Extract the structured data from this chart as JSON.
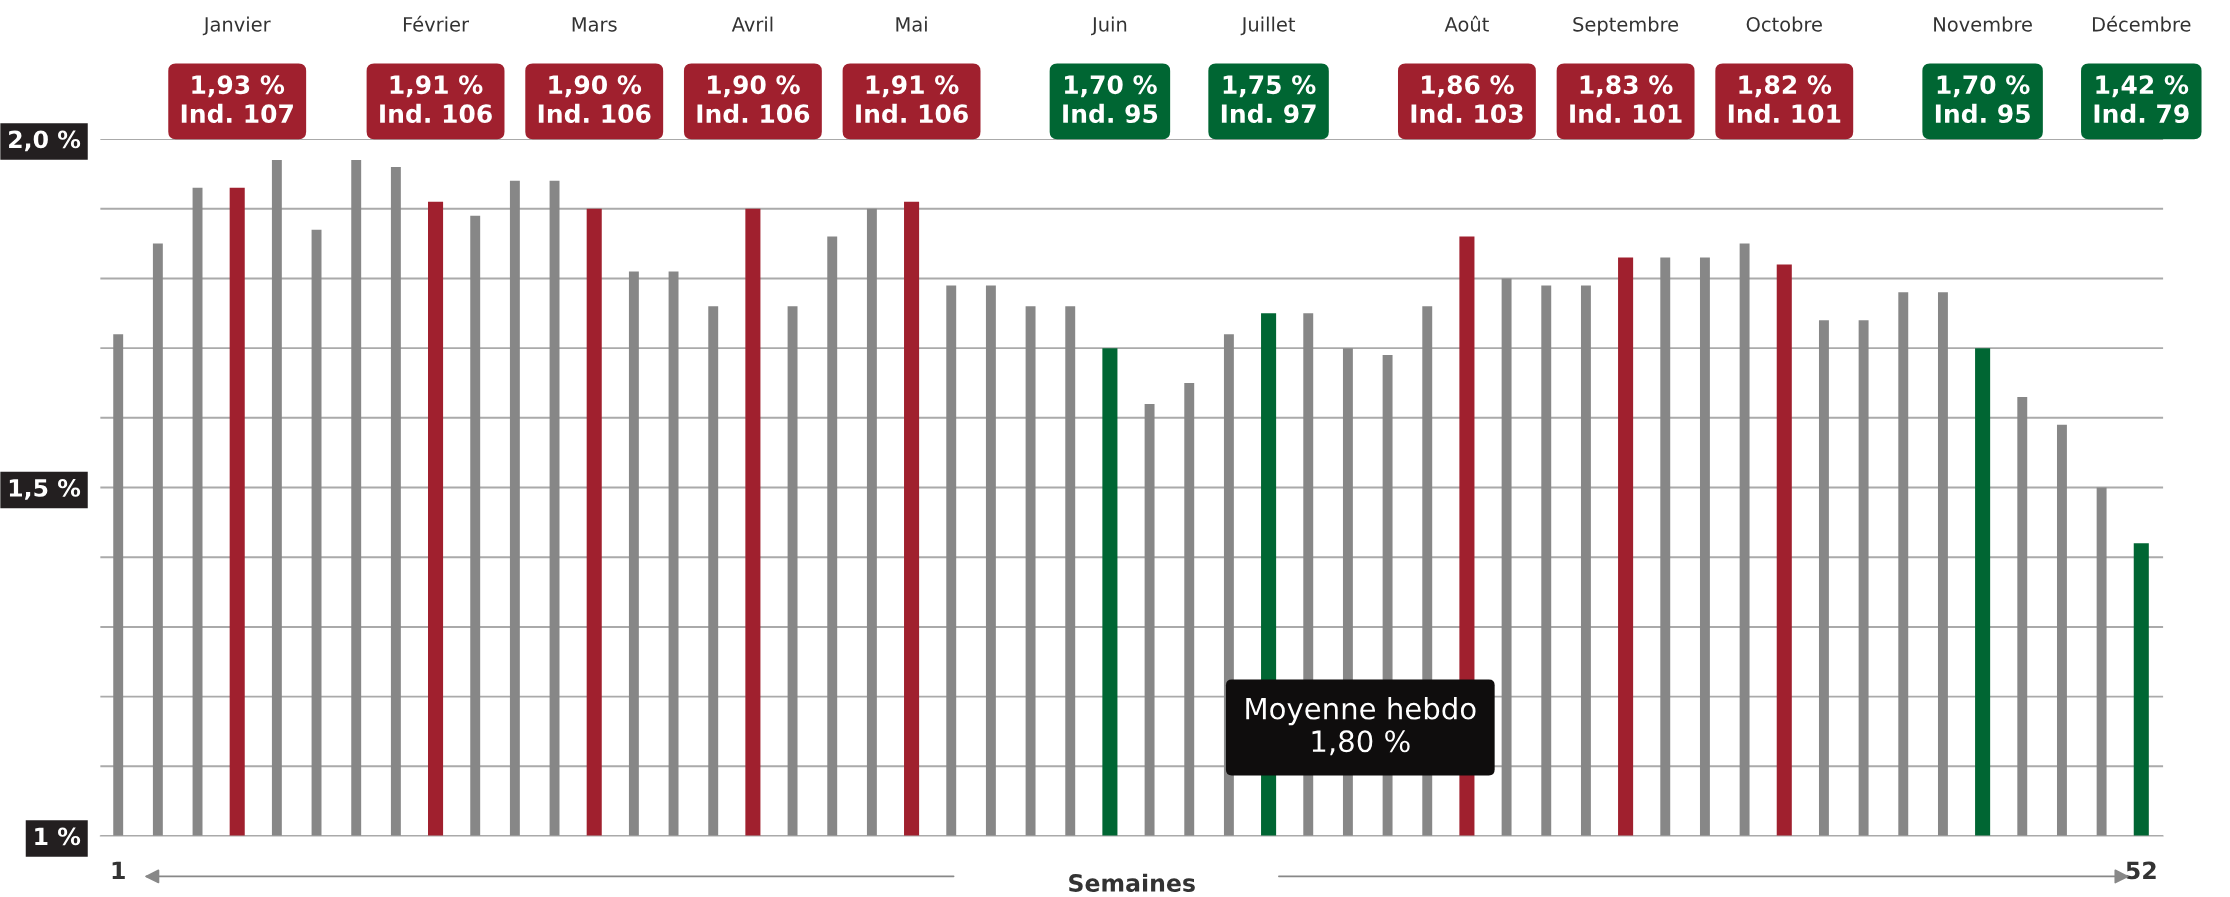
{
  "chart_data": {
    "type": "bar",
    "xlabel": "Semaines",
    "categories": [
      "1",
      null,
      null,
      null,
      null,
      null,
      null,
      null,
      null,
      null,
      null,
      null,
      null,
      null,
      null,
      null,
      null,
      null,
      null,
      null,
      null,
      null,
      null,
      null,
      null,
      null,
      null,
      null,
      null,
      null,
      null,
      null,
      null,
      null,
      null,
      null,
      null,
      null,
      null,
      null,
      null,
      null,
      null,
      null,
      null,
      null,
      null,
      null,
      null,
      null,
      null,
      "52"
    ],
    "values": [
      1.72,
      1.85,
      1.93,
      1.93,
      1.97,
      1.87,
      1.97,
      1.96,
      1.91,
      1.89,
      1.94,
      1.94,
      1.9,
      1.81,
      1.81,
      1.76,
      1.9,
      1.76,
      1.86,
      1.9,
      1.91,
      1.79,
      1.79,
      1.76,
      1.76,
      1.7,
      1.62,
      1.65,
      1.72,
      1.75,
      1.75,
      1.7,
      1.69,
      1.76,
      1.86,
      1.8,
      1.79,
      1.79,
      1.83,
      1.83,
      1.83,
      1.85,
      1.82,
      1.74,
      1.74,
      1.78,
      1.78,
      1.7,
      1.63,
      1.59,
      1.5,
      1.42
    ],
    "colors": [
      "#878787",
      "#878787",
      "#878787",
      "#a0202e",
      "#878787",
      "#878787",
      "#878787",
      "#878787",
      "#a0202e",
      "#878787",
      "#878787",
      "#878787",
      "#a0202e",
      "#878787",
      "#878787",
      "#878787",
      "#a0202e",
      "#878787",
      "#878787",
      "#878787",
      "#a0202e",
      "#878787",
      "#878787",
      "#878787",
      "#878787",
      "#006633",
      "#878787",
      "#878787",
      "#878787",
      "#006633",
      "#878787",
      "#878787",
      "#878787",
      "#878787",
      "#a0202e",
      "#878787",
      "#878787",
      "#878787",
      "#a0202e",
      "#878787",
      "#878787",
      "#878787",
      "#a0202e",
      "#878787",
      "#878787",
      "#878787",
      "#878787",
      "#006633",
      "#878787",
      "#878787",
      "#878787",
      "#006633"
    ],
    "annotations": [
      "Janvier\n1,93 %\nInd. 107",
      "Février\n1,91 %\nInd. 106",
      "Mars\n1,90 %\nInd. 106",
      "Avril\n1,90 %\nInd. 106",
      "Mai\n1,91 %\nInd. 106",
      "Juin\n1,70 %\nInd. 95",
      "Juillet\n1,75 %\nInd. 97",
      "Août\n1,86 %\nInd. 103",
      "Septembre\n1,83 %\nInd. 101",
      "Octobre\n1,82 %\nInd. 101",
      "Novembre\n1,70 %\nInd. 95",
      "Décembre\n1,42 %\nInd. 79",
      "Moyenne hebdo\n1,80 %"
    ],
    "ylim": [
      1,
      2.0
    ],
    "yticks": [
      {
        "value": 1,
        "label": "1 %"
      },
      {
        "value": 1.1,
        "label": null
      },
      {
        "value": 1.2,
        "label": null
      },
      {
        "value": 1.3,
        "label": null
      },
      {
        "value": 1.4,
        "label": null
      },
      {
        "value": 1.5,
        "label": "1,5 %"
      },
      {
        "value": 1.6,
        "label": null
      },
      {
        "value": 1.7,
        "label": null
      },
      {
        "value": 1.8,
        "label": null
      },
      {
        "value": 1.9,
        "label": null
      },
      {
        "value": 2.0,
        "label": "2,0 %"
      }
    ],
    "grid": "y"
  }
}
